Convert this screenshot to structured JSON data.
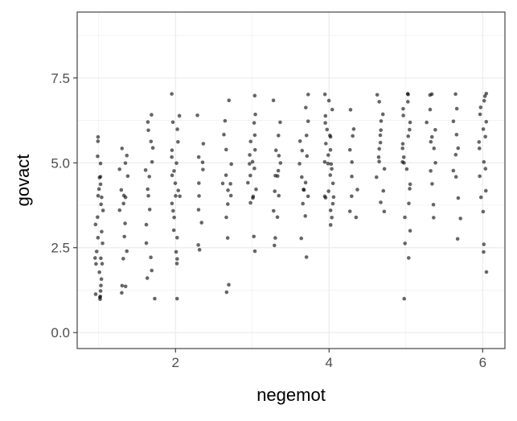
{
  "chart_data": {
    "type": "scatter",
    "title": "",
    "xlabel": "negemot",
    "ylabel": "govact",
    "xlim": [
      0.72,
      6.29
    ],
    "ylim": [
      -0.47,
      9.44
    ],
    "xticks": [
      2,
      4,
      6
    ],
    "xtick_labels": [
      "2",
      "4",
      "6"
    ],
    "yticks": [
      0,
      2.5,
      5,
      7.5
    ],
    "ytick_labels": [
      "0.0",
      "2.5",
      "5.0",
      "7.5"
    ],
    "grid": true,
    "jitter": true,
    "point_color": "#000000",
    "point_opacity": 0.6,
    "panel_border_color": "#333333",
    "grid_color": "#ebebeb",
    "columns": [
      {
        "x": 1.0,
        "y": [
          1.0,
          1.0,
          1.05,
          1.1,
          1.2,
          1.4,
          1.6,
          1.8,
          2.0,
          2.0,
          2.2,
          2.2,
          2.4,
          2.6,
          2.8,
          3.0,
          3.2,
          3.4,
          3.6,
          3.8,
          4.0,
          4.0,
          4.2,
          4.4,
          4.6,
          4.6,
          5.0,
          5.2,
          5.6,
          5.8
        ]
      },
      {
        "x": 1.33,
        "y": [
          1.2,
          1.4,
          1.4,
          2.2,
          2.4,
          2.8,
          3.2,
          3.6,
          3.8,
          4.0,
          4.0,
          4.2,
          4.6,
          4.8,
          5.0,
          5.2,
          5.4
        ]
      },
      {
        "x": 1.67,
        "y": [
          1.0,
          1.6,
          1.8,
          2.2,
          2.6,
          3.2,
          3.6,
          4.0,
          4.2,
          4.6,
          4.8,
          5.0,
          5.4,
          5.6,
          6.0,
          6.2,
          6.4
        ]
      },
      {
        "x": 2.0,
        "y": [
          1.0,
          2.0,
          2.2,
          2.4,
          2.8,
          3.0,
          3.4,
          3.6,
          3.8,
          4.0,
          4.0,
          4.2,
          4.4,
          4.6,
          4.8,
          5.0,
          5.2,
          5.4,
          5.6,
          6.0,
          6.2,
          6.4,
          7.0
        ]
      },
      {
        "x": 2.33,
        "y": [
          2.4,
          2.6,
          3.2,
          3.6,
          4.0,
          4.4,
          4.8,
          5.0,
          5.2,
          5.6,
          6.4
        ]
      },
      {
        "x": 2.67,
        "y": [
          1.2,
          1.4,
          2.8,
          3.4,
          3.8,
          4.0,
          4.2,
          4.4,
          4.4,
          4.6,
          5.0,
          5.4,
          5.8,
          6.2,
          6.8
        ]
      },
      {
        "x": 3.0,
        "y": [
          2.4,
          2.8,
          3.8,
          4.0,
          4.0,
          4.2,
          4.4,
          4.6,
          4.8,
          5.0,
          5.0,
          5.2,
          5.4,
          5.6,
          5.8,
          6.2,
          6.4,
          7.0
        ]
      },
      {
        "x": 3.33,
        "y": [
          2.6,
          2.8,
          3.4,
          3.6,
          4.0,
          4.2,
          4.6,
          4.6,
          4.8,
          5.0,
          5.2,
          5.4,
          5.8,
          6.2,
          6.8
        ]
      },
      {
        "x": 3.67,
        "y": [
          2.2,
          2.8,
          3.4,
          3.8,
          4.0,
          4.2,
          4.2,
          4.4,
          4.6,
          5.0,
          5.2,
          5.4,
          5.6,
          5.8,
          6.2,
          6.6,
          7.0
        ]
      },
      {
        "x": 4.0,
        "y": [
          3.2,
          3.4,
          3.6,
          3.8,
          4.0,
          4.0,
          4.0,
          4.2,
          4.4,
          4.6,
          4.8,
          5.0,
          5.0,
          5.0,
          5.2,
          5.4,
          5.6,
          5.8,
          5.8,
          6.0,
          6.2,
          6.4,
          6.6,
          6.8,
          7.0
        ]
      },
      {
        "x": 4.33,
        "y": [
          3.4,
          3.6,
          4.0,
          4.2,
          4.6,
          5.0,
          5.4,
          5.8,
          6.0,
          6.6
        ]
      },
      {
        "x": 4.67,
        "y": [
          3.6,
          3.8,
          4.2,
          4.6,
          4.8,
          5.0,
          5.2,
          5.4,
          5.6,
          5.8,
          6.0,
          6.2,
          6.4,
          6.8,
          7.0
        ]
      },
      {
        "x": 5.0,
        "y": [
          1.0,
          2.2,
          2.6,
          3.0,
          3.4,
          3.8,
          4.2,
          4.4,
          4.8,
          5.0,
          5.0,
          5.2,
          5.4,
          5.6,
          5.8,
          6.0,
          6.2,
          6.4,
          6.6,
          6.8,
          7.0,
          7.0
        ]
      },
      {
        "x": 5.33,
        "y": [
          3.4,
          3.8,
          4.4,
          4.8,
          5.0,
          5.4,
          5.6,
          5.8,
          6.0,
          6.2,
          6.6,
          7.0,
          7.0
        ]
      },
      {
        "x": 5.67,
        "y": [
          2.8,
          3.4,
          4.0,
          4.6,
          4.8,
          5.2,
          5.4,
          5.8,
          6.2,
          6.6,
          7.0
        ]
      },
      {
        "x": 6.0,
        "y": [
          1.8,
          2.4,
          2.6,
          3.6,
          4.0,
          4.2,
          4.6,
          4.8,
          5.0,
          5.4,
          5.6,
          5.8,
          6.0,
          6.2,
          6.4,
          6.6,
          6.8,
          7.0,
          7.0
        ]
      }
    ]
  }
}
